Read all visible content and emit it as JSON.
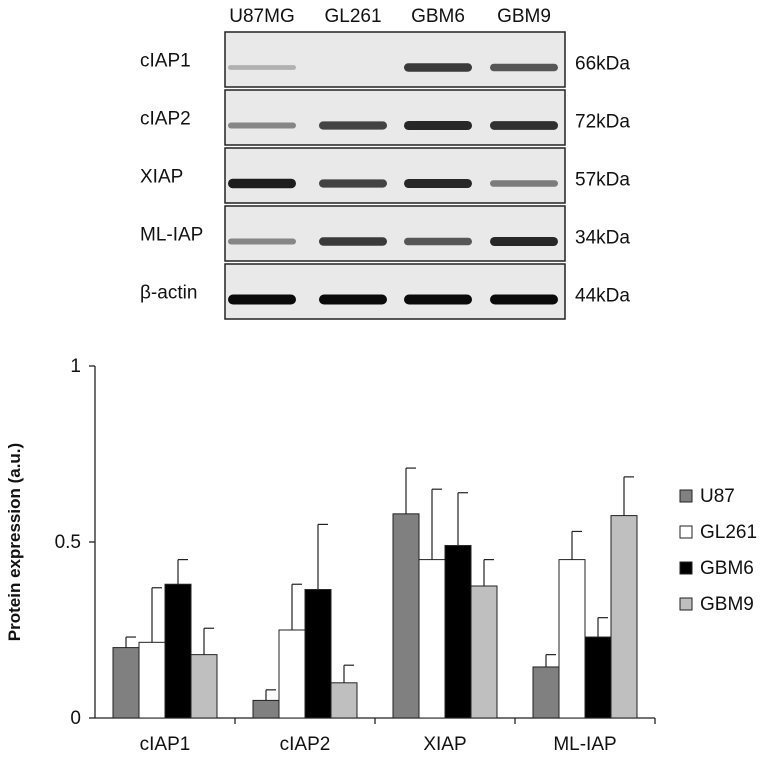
{
  "blot": {
    "lanes": [
      "U87MG",
      "GL261",
      "GBM6",
      "GBM9"
    ],
    "rows": [
      {
        "protein": "cIAP1",
        "size": "66kDa",
        "intensity": [
          0.12,
          0.0,
          0.75,
          0.6
        ]
      },
      {
        "protein": "cIAP2",
        "size": "72kDa",
        "intensity": [
          0.35,
          0.7,
          0.85,
          0.8
        ]
      },
      {
        "protein": "XIAP",
        "size": "57kDa",
        "intensity": [
          0.9,
          0.7,
          0.85,
          0.4
        ]
      },
      {
        "protein": "ML-IAP",
        "size": "34kDa",
        "intensity": [
          0.35,
          0.75,
          0.6,
          0.85
        ]
      },
      {
        "protein": "β-actin",
        "size": "44kDa",
        "intensity": [
          1.0,
          1.0,
          1.0,
          1.0
        ]
      }
    ]
  },
  "chart_data": {
    "type": "bar",
    "categories": [
      "cIAP1",
      "cIAP2",
      "XIAP",
      "ML-IAP"
    ],
    "ylabel": "Protein expression (a.u.)",
    "ylim": [
      0,
      1
    ],
    "yticks": [
      "0",
      "0.5",
      "1"
    ],
    "legend_position": "right",
    "series": [
      {
        "name": "U87",
        "color": "#808080",
        "values": [
          0.2,
          0.05,
          0.58,
          0.145
        ],
        "errors": [
          0.03,
          0.03,
          0.13,
          0.035
        ]
      },
      {
        "name": "GL261",
        "color": "#ffffff",
        "values": [
          0.215,
          0.25,
          0.45,
          0.45
        ],
        "errors": [
          0.155,
          0.13,
          0.2,
          0.08
        ]
      },
      {
        "name": "GBM6",
        "color": "#000000",
        "values": [
          0.38,
          0.365,
          0.49,
          0.23
        ],
        "errors": [
          0.07,
          0.185,
          0.15,
          0.055
        ]
      },
      {
        "name": "GBM9",
        "color": "#bfbfbf",
        "values": [
          0.18,
          0.1,
          0.375,
          0.575
        ],
        "errors": [
          0.075,
          0.05,
          0.075,
          0.11
        ]
      }
    ]
  }
}
